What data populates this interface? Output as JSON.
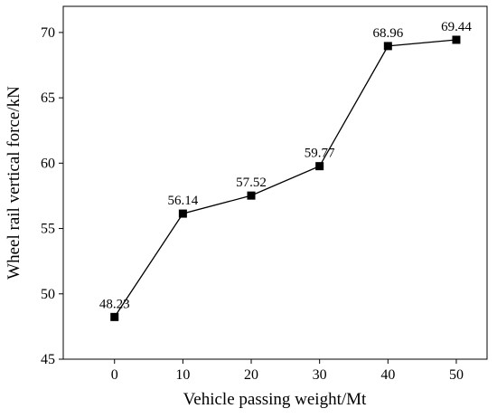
{
  "chart_data": {
    "type": "line",
    "title": "",
    "xlabel": "Vehicle passing weight/Mt",
    "ylabel": "Wheel rail vertical force/kN",
    "x": [
      0,
      10,
      20,
      30,
      40,
      50
    ],
    "xlim": [
      -7.5,
      54.5
    ],
    "ylim": [
      45,
      72
    ],
    "x_ticks": [
      0,
      10,
      20,
      30,
      40,
      50
    ],
    "y_ticks": [
      45,
      50,
      55,
      60,
      65,
      70
    ],
    "series": [
      {
        "values": [
          48.23,
          56.14,
          57.52,
          59.77,
          68.96,
          69.44
        ],
        "labels": [
          "48.23",
          "56.14",
          "57.52",
          "59.77",
          "68.96",
          "69.44"
        ],
        "color": "#000000",
        "marker": "square"
      }
    ],
    "grid": false,
    "legend": "none"
  }
}
